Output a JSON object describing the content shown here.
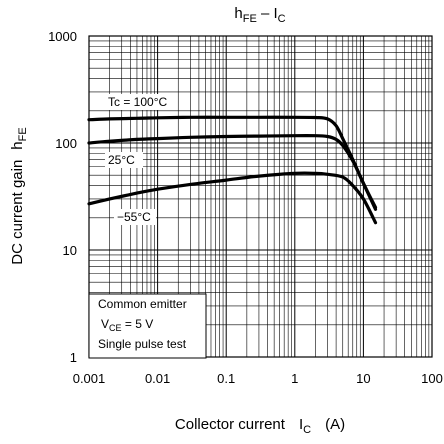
{
  "chart_data": {
    "type": "line",
    "title": "hFE – IC",
    "title_parts": {
      "main": "h",
      "main_sub": "FE",
      "dash": " – ",
      "second": "I",
      "second_sub": "C"
    },
    "xlabel": "Collector current",
    "xlabel_symbol": "I",
    "xlabel_symbol_sub": "C",
    "xlabel_unit": "(A)",
    "ylabel": "DC current gain",
    "ylabel_symbol": "h",
    "ylabel_symbol_sub": "FE",
    "x_scale": "log",
    "y_scale": "log",
    "xlim": [
      0.001,
      100
    ],
    "ylim": [
      1,
      1000
    ],
    "x_ticks": [
      0.001,
      0.01,
      0.1,
      1,
      10,
      100
    ],
    "x_tick_labels": [
      "0.001",
      "0.01",
      "0.1",
      "1",
      "10",
      "100"
    ],
    "y_ticks": [
      1,
      10,
      100,
      1000
    ],
    "y_tick_labels": [
      "1",
      "10",
      "100",
      "1000"
    ],
    "grid": true,
    "series": [
      {
        "name": "Tc = 100°C",
        "x": [
          0.001,
          0.002,
          0.005,
          0.01,
          0.03,
          0.1,
          0.3,
          1,
          2,
          3,
          4,
          5,
          7,
          10,
          15
        ],
        "y": [
          165,
          168,
          170,
          172,
          174,
          174,
          174,
          174,
          173,
          168,
          145,
          110,
          70,
          42,
          25
        ]
      },
      {
        "name": "25°C",
        "x": [
          0.001,
          0.002,
          0.005,
          0.01,
          0.03,
          0.1,
          0.3,
          1,
          2,
          3,
          4,
          5,
          7,
          10,
          15
        ],
        "y": [
          100,
          104,
          108,
          110,
          113,
          115,
          116,
          117,
          117,
          115,
          108,
          95,
          68,
          42,
          24
        ]
      },
      {
        "name": "−55°C",
        "x": [
          0.001,
          0.002,
          0.005,
          0.01,
          0.03,
          0.1,
          0.3,
          1,
          2,
          3,
          5,
          7,
          10,
          15
        ],
        "y": [
          27,
          30,
          34,
          37,
          41,
          45,
          49,
          52,
          52,
          51,
          48,
          40,
          30,
          18
        ]
      }
    ],
    "legend_box": {
      "line1": "Common emitter",
      "line2_symbol": "V",
      "line2_sub": "CE",
      "line2_rest": " = 5 V",
      "line3": "Single pulse test",
      "placement": "bottom-left"
    }
  }
}
